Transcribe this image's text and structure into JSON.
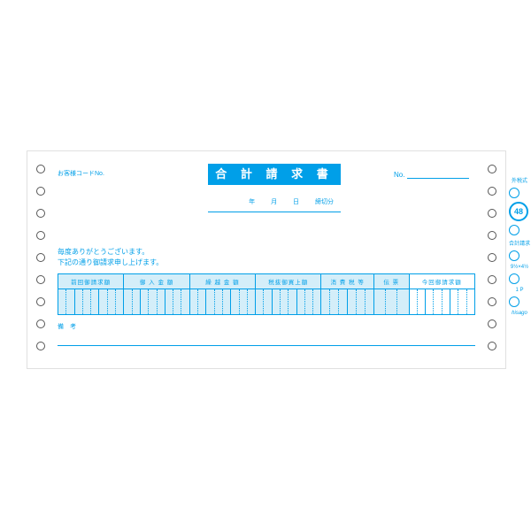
{
  "colors": {
    "primary": "#009fe8",
    "primary_light": "#d4eef9",
    "text": "#009fe8",
    "border": "#009fe8"
  },
  "header": {
    "customer_code_label": "お客様コードNo.",
    "title": "合 計 請 求 書",
    "no_label": "No."
  },
  "date_labels": {
    "year": "年",
    "month": "月",
    "day": "日",
    "suffix": "締切分"
  },
  "greeting": {
    "line1": "毎度ありがとうございます。",
    "line2": "下記の通り御請求申し上げます。"
  },
  "table": {
    "header_bg": "#d4eef9",
    "columns": [
      {
        "label": "前回御請求額",
        "digits": 8,
        "width": 15
      },
      {
        "label": "御 入 金 額",
        "digits": 8,
        "width": 15
      },
      {
        "label": "繰 越 金 額",
        "digits": 8,
        "width": 15
      },
      {
        "label": "税抜御買上額",
        "digits": 8,
        "width": 15
      },
      {
        "label": "消 費 税 等",
        "digits": 6,
        "width": 12
      },
      {
        "label": "伝 票",
        "digits": 3,
        "width": 8
      },
      {
        "label": "今回御請求額",
        "digits": 8,
        "width": 15
      }
    ]
  },
  "remarks_label": "備　考",
  "side": {
    "label1": "外税式",
    "badge_number": "48",
    "label2": "合計請求",
    "label3": "9½×4½",
    "label4": "1 P",
    "brand": "hisago"
  }
}
